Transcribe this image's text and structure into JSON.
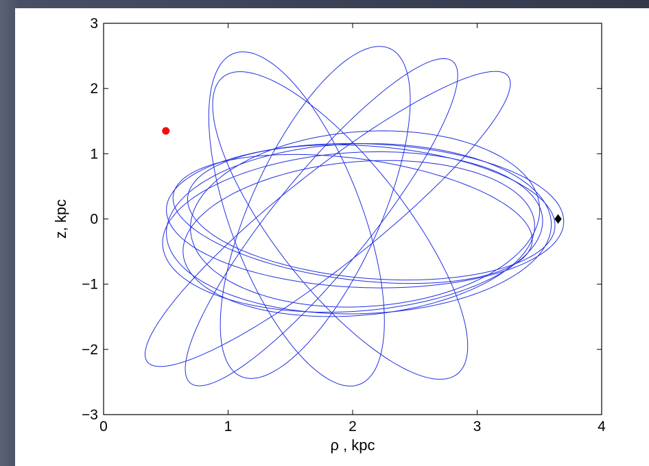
{
  "chart_data": {
    "type": "line",
    "title": "",
    "xlabel": "ρ , kpc",
    "ylabel": "z, kpc",
    "xlim": [
      0,
      4
    ],
    "ylim": [
      -3,
      3
    ],
    "xticks": [
      0,
      1,
      2,
      3,
      4
    ],
    "xtick_labels": [
      "0",
      "1",
      "2",
      "3",
      "4"
    ],
    "yticks": [
      -3,
      -2,
      -1,
      0,
      1,
      2,
      3
    ],
    "ytick_labels": [
      "−3",
      "−2",
      "−1",
      "0",
      "1",
      "2",
      "3"
    ],
    "grid": false,
    "series": [
      {
        "kind": "orbit",
        "color": "#1f2ee0",
        "loops": [
          {
            "cx": 2.05,
            "cz": -0.15,
            "a": 1.55,
            "b": 1.3,
            "rot_deg": 8
          },
          {
            "cx": 2.1,
            "cz": 0.05,
            "a": 1.6,
            "b": 1.1,
            "rot_deg": -6
          },
          {
            "cx": 2.0,
            "cz": -0.2,
            "a": 1.55,
            "b": 1.2,
            "rot_deg": 16
          },
          {
            "cx": 2.15,
            "cz": 0.1,
            "a": 1.5,
            "b": 1.0,
            "rot_deg": -14
          },
          {
            "cx": 2.05,
            "cz": -0.3,
            "a": 1.45,
            "b": 1.15,
            "rot_deg": 22
          },
          {
            "cx": 2.0,
            "cz": 0.0,
            "a": 1.5,
            "b": 0.9,
            "rot_deg": -20
          },
          {
            "cx": 1.7,
            "cz": 0.1,
            "a": 2.6,
            "b": 0.55,
            "rot_deg": 78
          },
          {
            "cx": 1.75,
            "cz": -0.05,
            "a": 2.7,
            "b": 0.45,
            "rot_deg": 68
          },
          {
            "cx": 1.8,
            "cz": 0.0,
            "a": 2.65,
            "b": 0.5,
            "rot_deg": 58
          },
          {
            "cx": 1.55,
            "cz": 0.0,
            "a": 2.6,
            "b": 0.55,
            "rot_deg": 100
          },
          {
            "cx": 1.9,
            "cz": -0.1,
            "a": 2.5,
            "b": 0.6,
            "rot_deg": 110
          },
          {
            "cx": 2.1,
            "cz": 0.0,
            "a": 1.45,
            "b": 1.3,
            "rot_deg": 35
          }
        ]
      }
    ],
    "markers": [
      {
        "kind": "start",
        "x": 0.5,
        "z": 1.35,
        "color": "#ee1111",
        "shape": "circle"
      },
      {
        "kind": "end",
        "x": 3.65,
        "z": 0.0,
        "color": "#000000",
        "shape": "diamond"
      }
    ]
  }
}
